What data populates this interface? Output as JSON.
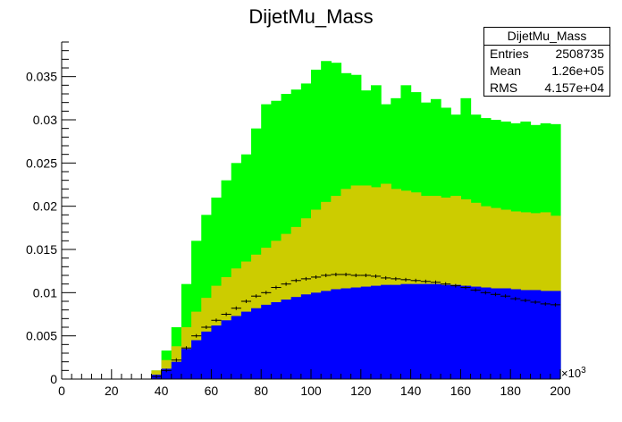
{
  "chart_data": {
    "type": "area",
    "title": "DijetMu_Mass",
    "xlabel": "",
    "ylabel": "",
    "x_multiplier_label": "×10",
    "x_multiplier_exp": "3",
    "xlim": [
      0,
      200
    ],
    "ylim": [
      0,
      0.039
    ],
    "x_ticks": [
      "0",
      "20",
      "40",
      "60",
      "80",
      "100",
      "120",
      "140",
      "160",
      "180",
      "200"
    ],
    "y_ticks": [
      "0",
      "0.005",
      "0.01",
      "0.015",
      "0.02",
      "0.025",
      "0.03",
      "0.035"
    ],
    "bin_edges_start": 0,
    "bin_width": 4,
    "series": [
      {
        "color": "#0000ff",
        "values": [
          0,
          0,
          0,
          0,
          0,
          0,
          0,
          0,
          0,
          0.0005,
          0.0012,
          0.002,
          0.0035,
          0.0045,
          0.0055,
          0.0062,
          0.0068,
          0.0073,
          0.0078,
          0.0082,
          0.0086,
          0.0089,
          0.0092,
          0.0095,
          0.0098,
          0.01,
          0.0102,
          0.0104,
          0.0105,
          0.0106,
          0.0107,
          0.0108,
          0.0109,
          0.0109,
          0.011,
          0.011,
          0.011,
          0.011,
          0.0109,
          0.0109,
          0.0108,
          0.0107,
          0.0106,
          0.0105,
          0.0105,
          0.0104,
          0.0103,
          0.0103,
          0.0102,
          0.0102
        ]
      },
      {
        "color": "#cccc00",
        "values": [
          0,
          0,
          0,
          0,
          0,
          0,
          0,
          0,
          0,
          0.001,
          0.0022,
          0.0038,
          0.006,
          0.0078,
          0.0094,
          0.0108,
          0.0118,
          0.0128,
          0.0136,
          0.0144,
          0.0152,
          0.016,
          0.0168,
          0.0176,
          0.0186,
          0.0196,
          0.0205,
          0.0212,
          0.022,
          0.0224,
          0.0224,
          0.0222,
          0.0226,
          0.022,
          0.0218,
          0.0216,
          0.0212,
          0.0212,
          0.021,
          0.0212,
          0.0208,
          0.0204,
          0.02,
          0.0198,
          0.0196,
          0.0194,
          0.0193,
          0.0192,
          0.0193,
          0.0189
        ]
      },
      {
        "color": "#00ff00",
        "values": [
          0,
          0,
          0,
          0,
          0,
          0,
          0,
          0,
          0,
          0.001,
          0.0033,
          0.006,
          0.011,
          0.016,
          0.019,
          0.021,
          0.023,
          0.025,
          0.026,
          0.029,
          0.0318,
          0.0322,
          0.033,
          0.0335,
          0.0342,
          0.0358,
          0.0368,
          0.0366,
          0.0354,
          0.0352,
          0.0334,
          0.034,
          0.0318,
          0.0325,
          0.034,
          0.0332,
          0.032,
          0.0324,
          0.0314,
          0.0306,
          0.0325,
          0.0306,
          0.0302,
          0.03,
          0.0298,
          0.0296,
          0.0298,
          0.0294,
          0.0296,
          0.0295
        ]
      },
      {
        "color": "#000000",
        "style": "errorbar",
        "values": [
          0,
          0,
          0,
          0,
          0,
          0,
          0,
          0,
          0,
          0.0003,
          0.001,
          0.0022,
          0.0036,
          0.005,
          0.006,
          0.0068,
          0.0075,
          0.0082,
          0.009,
          0.0096,
          0.01,
          0.0106,
          0.011,
          0.0114,
          0.0116,
          0.0118,
          0.012,
          0.0121,
          0.0121,
          0.012,
          0.012,
          0.0119,
          0.0117,
          0.0116,
          0.0115,
          0.0114,
          0.0113,
          0.0112,
          0.011,
          0.0108,
          0.0106,
          0.0103,
          0.01,
          0.0098,
          0.0096,
          0.0093,
          0.0091,
          0.0089,
          0.0087,
          0.0086
        ]
      }
    ],
    "stats": {
      "header": "DijetMu_Mass",
      "rows": [
        {
          "key": "Entries",
          "value": "2508735"
        },
        {
          "key": "Mean",
          "value": "1.26e+05"
        },
        {
          "key": "RMS",
          "value": "4.157e+04"
        }
      ]
    }
  }
}
